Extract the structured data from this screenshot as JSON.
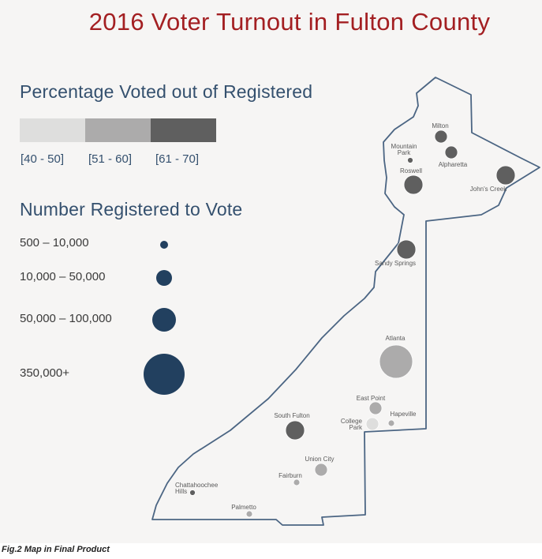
{
  "title": "2016 Voter Turnout in Fulton County",
  "percent_legend": {
    "heading": "Percentage Voted out of Registered",
    "bins": [
      {
        "label": "[40 - 50]",
        "color": "#dededd"
      },
      {
        "label": "[51 - 60]",
        "color": "#acabab"
      },
      {
        "label": "[61 - 70]",
        "color": "#5f5f5f"
      }
    ]
  },
  "size_legend": {
    "heading": "Number Registered to Vote",
    "color": "#22405f",
    "items": [
      {
        "label": "500 – 10,000"
      },
      {
        "label": "10,000 – 50,000"
      },
      {
        "label": "50,000 – 100,000"
      },
      {
        "label": "350,000+"
      }
    ]
  },
  "cities": [
    {
      "name": "Milton",
      "bin": "[61 - 70]",
      "registered_class": "10,000 – 50,000"
    },
    {
      "name": "Mountain Park",
      "bin": "[61 - 70]",
      "registered_class": "500 – 10,000"
    },
    {
      "name": "Alpharetta",
      "bin": "[61 - 70]",
      "registered_class": "10,000 – 50,000"
    },
    {
      "name": "Roswell",
      "bin": "[61 - 70]",
      "registered_class": "50,000 – 100,000"
    },
    {
      "name": "John's Creek",
      "bin": "[61 - 70]",
      "registered_class": "50,000 – 100,000"
    },
    {
      "name": "Sandy Springs",
      "bin": "[61 - 70]",
      "registered_class": "50,000 – 100,000"
    },
    {
      "name": "Atlanta",
      "bin": "[51 - 60]",
      "registered_class": "350,000+"
    },
    {
      "name": "East Point",
      "bin": "[51 - 60]",
      "registered_class": "10,000 – 50,000"
    },
    {
      "name": "College Park",
      "bin": "[40 - 50]",
      "registered_class": "10,000 – 50,000"
    },
    {
      "name": "Hapeville",
      "bin": "[51 - 60]",
      "registered_class": "500 – 10,000"
    },
    {
      "name": "South Fulton",
      "bin": "[61 - 70]",
      "registered_class": "50,000 – 100,000"
    },
    {
      "name": "Union City",
      "bin": "[51 - 60]",
      "registered_class": "10,000 – 50,000"
    },
    {
      "name": "Fairburn",
      "bin": "[51 - 60]",
      "registered_class": "500 – 10,000"
    },
    {
      "name": "Chattahoochee Hills",
      "bin": "[61 - 70]",
      "registered_class": "500 – 10,000"
    },
    {
      "name": "Palmetto",
      "bin": "[51 - 60]",
      "registered_class": "500 – 10,000"
    }
  ],
  "caption": "Fig.2 Map in Final Product"
}
